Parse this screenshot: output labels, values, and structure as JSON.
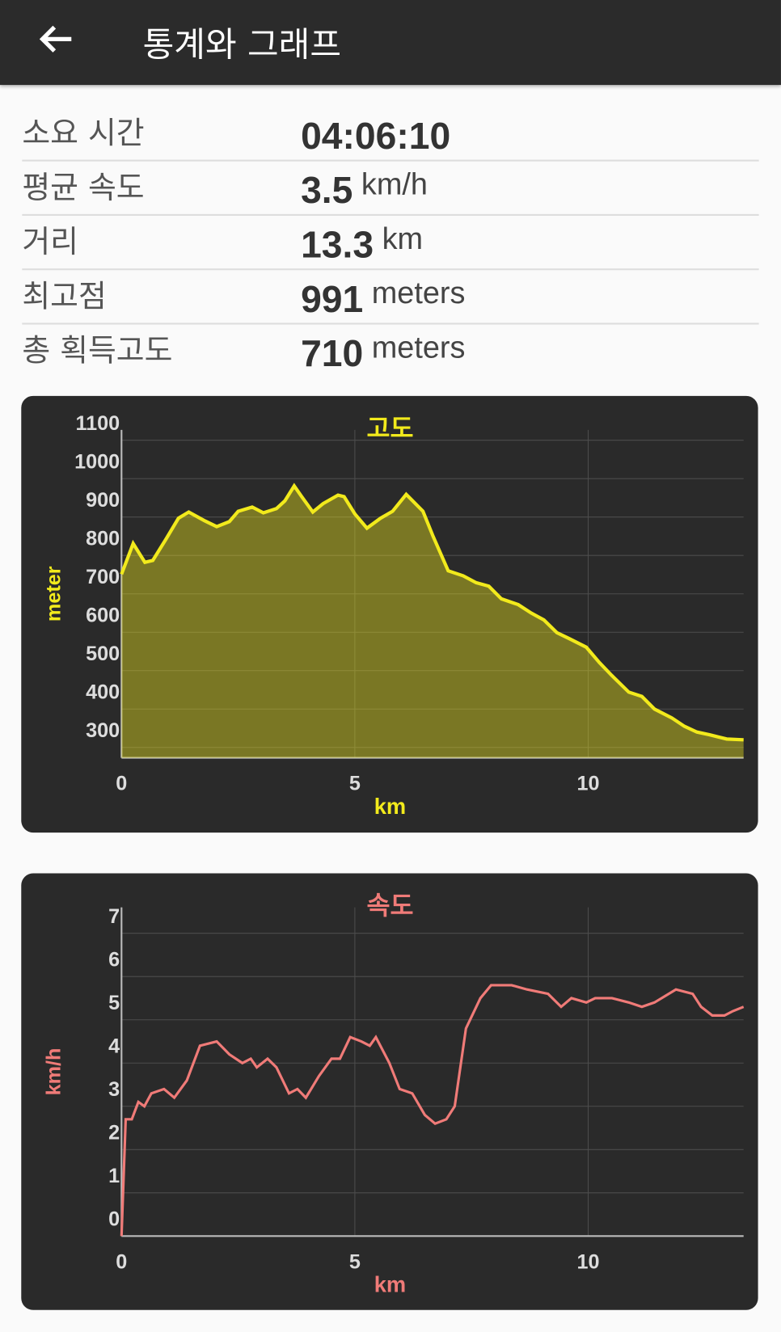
{
  "header": {
    "title": "통계와 그래프"
  },
  "stats": [
    {
      "label": "소요 시간",
      "value": "04:06:10"
    },
    {
      "label": "평균 속도",
      "value": "3.5",
      "unit": "km/h"
    },
    {
      "label": "거리",
      "value": "13.3",
      "unit": "km"
    },
    {
      "label": "최고점",
      "value": "991",
      "unit": "meters"
    },
    {
      "label": "총 획득고도",
      "value": "710",
      "unit": "meters"
    }
  ],
  "chart_data": [
    {
      "type": "area",
      "title": "고도",
      "x_label": "km",
      "y_label": "meter",
      "color": "#f2ea1c",
      "grid": true,
      "xlim": [
        0,
        13.33
      ],
      "xticks": [
        0,
        5,
        10
      ],
      "ylim": [
        273,
        1127
      ],
      "yticks": [
        300,
        400,
        500,
        600,
        700,
        800,
        900,
        1000,
        1100
      ],
      "x": [
        0,
        0.25,
        0.5,
        0.67,
        0.95,
        1.22,
        1.44,
        1.77,
        2.04,
        2.31,
        2.5,
        2.8,
        3.04,
        3.32,
        3.5,
        3.7,
        3.86,
        4.1,
        4.32,
        4.64,
        4.77,
        5.0,
        5.26,
        5.55,
        5.81,
        6.1,
        6.46,
        6.68,
        7.0,
        7.32,
        7.6,
        7.87,
        8.14,
        8.5,
        8.78,
        9.05,
        9.33,
        9.6,
        9.96,
        10.24,
        10.5,
        10.87,
        11.15,
        11.42,
        11.79,
        12.06,
        12.33,
        12.6,
        12.97,
        13.33
      ],
      "values": [
        751,
        831,
        782,
        787,
        842,
        897,
        913,
        891,
        875,
        888,
        915,
        926,
        911,
        922,
        942,
        981,
        953,
        913,
        935,
        957,
        953,
        908,
        871,
        897,
        915,
        959,
        915,
        849,
        760,
        747,
        729,
        720,
        687,
        672,
        650,
        632,
        599,
        583,
        561,
        521,
        488,
        444,
        433,
        400,
        377,
        355,
        340,
        333,
        322,
        320
      ]
    },
    {
      "type": "line",
      "title": "속도",
      "x_label": "km",
      "y_label": "km/h",
      "color": "#f07b78",
      "grid": true,
      "xlim": [
        0,
        13.33
      ],
      "xticks": [
        0,
        5,
        10
      ],
      "ylim": [
        0,
        7.6
      ],
      "yticks": [
        0,
        1,
        2,
        3,
        4,
        5,
        6,
        7
      ],
      "x": [
        0,
        0.09,
        0.22,
        0.36,
        0.49,
        0.64,
        0.91,
        1.13,
        1.4,
        1.68,
        2.04,
        2.31,
        2.59,
        2.77,
        2.9,
        3.13,
        3.32,
        3.59,
        3.77,
        3.95,
        4.23,
        4.5,
        4.68,
        4.9,
        5.14,
        5.32,
        5.45,
        5.74,
        5.96,
        6.23,
        6.5,
        6.72,
        6.96,
        7.14,
        7.38,
        7.69,
        7.92,
        8.23,
        8.36,
        8.69,
        9.14,
        9.42,
        9.64,
        9.96,
        10.15,
        10.51,
        10.87,
        11.15,
        11.42,
        11.88,
        12.24,
        12.42,
        12.66,
        12.92,
        13.1,
        13.33
      ],
      "values": [
        0,
        2.7,
        2.7,
        3.1,
        3.0,
        3.3,
        3.4,
        3.2,
        3.6,
        4.4,
        4.5,
        4.2,
        4.0,
        4.1,
        3.9,
        4.1,
        3.9,
        3.3,
        3.4,
        3.2,
        3.7,
        4.1,
        4.1,
        4.6,
        4.5,
        4.4,
        4.6,
        4.0,
        3.4,
        3.3,
        2.8,
        2.6,
        2.7,
        3.0,
        4.8,
        5.5,
        5.8,
        5.8,
        5.8,
        5.7,
        5.6,
        5.3,
        5.5,
        5.4,
        5.5,
        5.5,
        5.4,
        5.3,
        5.4,
        5.7,
        5.6,
        5.3,
        5.1,
        5.1,
        5.2,
        5.3
      ]
    }
  ]
}
